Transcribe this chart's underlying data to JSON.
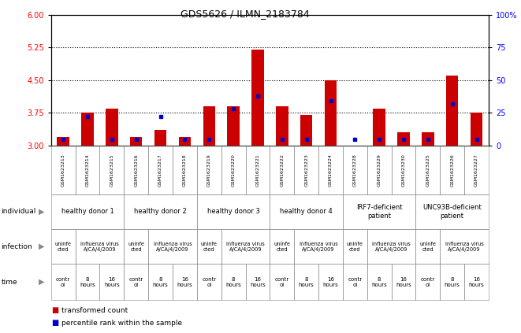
{
  "title": "GDS5626 / ILMN_2183784",
  "samples": [
    "GSM1623213",
    "GSM1623214",
    "GSM1623215",
    "GSM1623216",
    "GSM1623217",
    "GSM1623218",
    "GSM1623219",
    "GSM1623220",
    "GSM1623221",
    "GSM1623222",
    "GSM1623223",
    "GSM1623224",
    "GSM1623228",
    "GSM1623229",
    "GSM1623230",
    "GSM1623225",
    "GSM1623226",
    "GSM1623227"
  ],
  "red_values": [
    3.2,
    3.75,
    3.85,
    3.2,
    3.35,
    3.2,
    3.9,
    3.9,
    5.2,
    3.9,
    3.7,
    4.5,
    3.0,
    3.85,
    3.3,
    3.3,
    4.6,
    3.75
  ],
  "blue_percentiles": [
    5,
    22,
    5,
    5,
    22,
    5,
    5,
    28,
    38,
    5,
    5,
    34,
    5,
    5,
    5,
    5,
    32,
    5
  ],
  "ylim_left": [
    3.0,
    6.0
  ],
  "ylim_right": [
    0,
    100
  ],
  "yticks_left": [
    3.0,
    3.75,
    4.5,
    5.25,
    6.0
  ],
  "yticks_right": [
    0,
    25,
    50,
    75,
    100
  ],
  "dotted_lines": [
    3.75,
    4.5,
    5.25
  ],
  "groups": [
    {
      "label": "healthy donor 1",
      "start": 0,
      "end": 3,
      "color": "#c8f0c8"
    },
    {
      "label": "healthy donor 2",
      "start": 3,
      "end": 6,
      "color": "#c8f0c8"
    },
    {
      "label": "healthy donor 3",
      "start": 6,
      "end": 9,
      "color": "#c8f0c8"
    },
    {
      "label": "healthy donor 4",
      "start": 9,
      "end": 12,
      "color": "#c8f0c8"
    },
    {
      "label": "IRF7-deficient\npatient",
      "start": 12,
      "end": 15,
      "color": "#66cc66"
    },
    {
      "label": "UNC93B-deficient\npatient",
      "start": 15,
      "end": 18,
      "color": "#66cc66"
    }
  ],
  "infections": [
    {
      "label": "uninfe\ncted",
      "start": 0,
      "end": 1,
      "color": "#b8c4e8"
    },
    {
      "label": "influenza virus\nA/CA/4/2009",
      "start": 1,
      "end": 3,
      "color": "#b8c4e8"
    },
    {
      "label": "uninfe\ncted",
      "start": 3,
      "end": 4,
      "color": "#b8c4e8"
    },
    {
      "label": "influenza virus\nA/CA/4/2009",
      "start": 4,
      "end": 6,
      "color": "#b8c4e8"
    },
    {
      "label": "uninfe\ncted",
      "start": 6,
      "end": 7,
      "color": "#b8c4e8"
    },
    {
      "label": "influenza virus\nA/CA/4/2009",
      "start": 7,
      "end": 9,
      "color": "#b8c4e8"
    },
    {
      "label": "uninfe\ncted",
      "start": 9,
      "end": 10,
      "color": "#b8c4e8"
    },
    {
      "label": "influenza virus\nA/CA/4/2009",
      "start": 10,
      "end": 12,
      "color": "#b8c4e8"
    },
    {
      "label": "uninfe\ncted",
      "start": 12,
      "end": 13,
      "color": "#b8c4e8"
    },
    {
      "label": "influenza virus\nA/CA/4/2009",
      "start": 13,
      "end": 15,
      "color": "#b8c4e8"
    },
    {
      "label": "uninfe\ncted",
      "start": 15,
      "end": 16,
      "color": "#b8c4e8"
    },
    {
      "label": "influenza virus\nA/CA/4/2009",
      "start": 16,
      "end": 18,
      "color": "#b8c4e8"
    }
  ],
  "times": [
    {
      "label": "contr\nol",
      "start": 0,
      "end": 1,
      "color": "#b8c4e8"
    },
    {
      "label": "8\nhours",
      "start": 1,
      "end": 2,
      "color": "#e8a0a0"
    },
    {
      "label": "16\nhours",
      "start": 2,
      "end": 3,
      "color": "#e06060"
    },
    {
      "label": "contr\nol",
      "start": 3,
      "end": 4,
      "color": "#b8c4e8"
    },
    {
      "label": "8\nhours",
      "start": 4,
      "end": 5,
      "color": "#e8a0a0"
    },
    {
      "label": "16\nhours",
      "start": 5,
      "end": 6,
      "color": "#e06060"
    },
    {
      "label": "contr\nol",
      "start": 6,
      "end": 7,
      "color": "#b8c4e8"
    },
    {
      "label": "8\nhours",
      "start": 7,
      "end": 8,
      "color": "#e8a0a0"
    },
    {
      "label": "16\nhours",
      "start": 8,
      "end": 9,
      "color": "#e06060"
    },
    {
      "label": "contr\nol",
      "start": 9,
      "end": 10,
      "color": "#b8c4e8"
    },
    {
      "label": "8\nhours",
      "start": 10,
      "end": 11,
      "color": "#e8a0a0"
    },
    {
      "label": "16\nhours",
      "start": 11,
      "end": 12,
      "color": "#e06060"
    },
    {
      "label": "contr\nol",
      "start": 12,
      "end": 13,
      "color": "#b8c4e8"
    },
    {
      "label": "8\nhours",
      "start": 13,
      "end": 14,
      "color": "#e8a0a0"
    },
    {
      "label": "16\nhours",
      "start": 14,
      "end": 15,
      "color": "#e06060"
    },
    {
      "label": "contr\nol",
      "start": 15,
      "end": 16,
      "color": "#b8c4e8"
    },
    {
      "label": "8\nhours",
      "start": 16,
      "end": 17,
      "color": "#e8a0a0"
    },
    {
      "label": "16\nhours",
      "start": 17,
      "end": 18,
      "color": "#e06060"
    }
  ],
  "legend_red": "transformed count",
  "legend_blue": "percentile rank within the sample",
  "bar_color_red": "#cc0000",
  "bar_color_blue": "#0000cc"
}
